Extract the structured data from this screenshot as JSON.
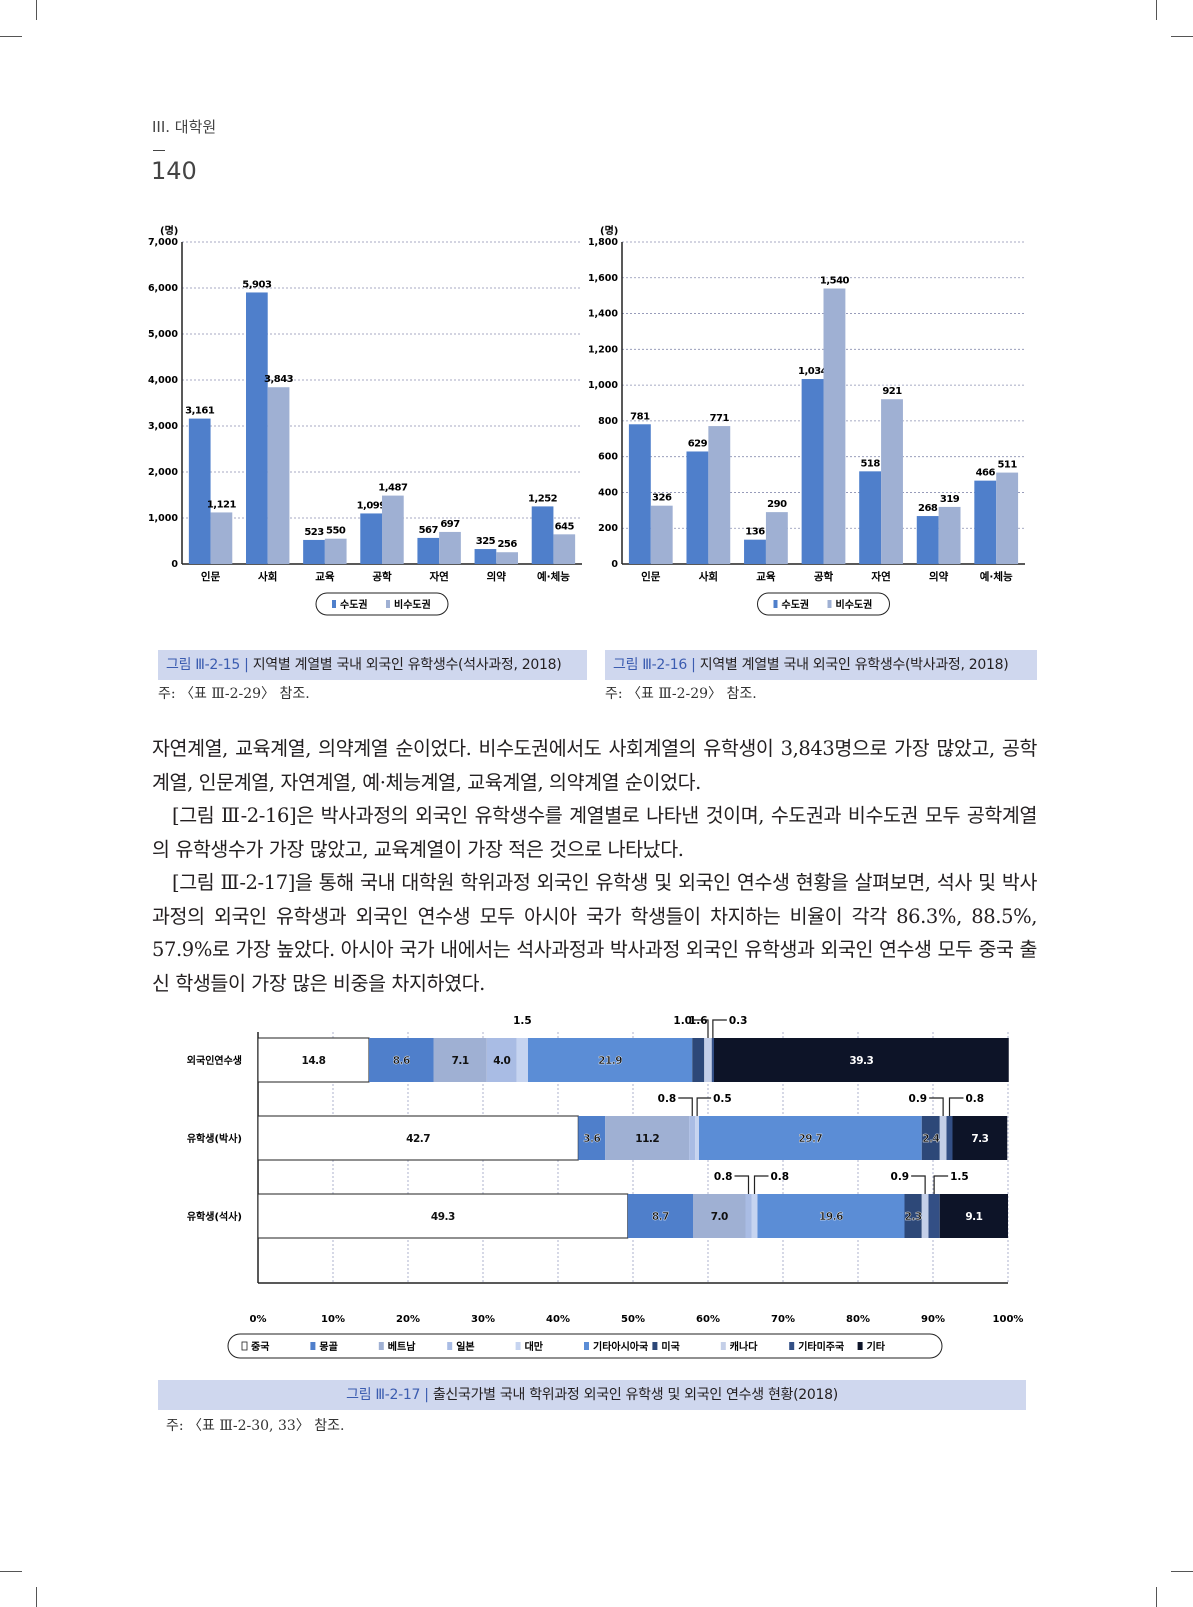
{
  "header": {
    "section": "III. 대학원",
    "page_number": "140"
  },
  "colors": {
    "capital": "#4f7fcb",
    "non_capital": "#9fb0d3",
    "caption_bg": "#cfd7ee",
    "caption_label": "#3b5cb0"
  },
  "figures": {
    "fig15": {
      "label": "그림 Ⅲ-2-15 |",
      "title": "지역별 계열별 국내 외국인 유학생수(석사과정, 2018)",
      "note": "주: 〈표 Ⅲ-2-29〉 참조."
    },
    "fig16": {
      "label": "그림 Ⅲ-2-16 |",
      "title": "지역별 계열별 국내 외국인 유학생수(박사과정, 2018)",
      "note": "주: 〈표 Ⅲ-2-29〉 참조."
    },
    "fig17": {
      "label": "그림 Ⅲ-2-17 |",
      "title": "출신국가별 국내 학위과정 외국인 유학생 및 외국인 연수생 현황(2018)",
      "note": "주: 〈표 Ⅲ-2-30, 33〉 참조."
    }
  },
  "body": {
    "paragraphs": [
      "자연계열, 교육계열, 의약계열 순이었다. 비수도권에서도 사회계열의 유학생이 3,843명으로 가장 많았고, 공학계열, 인문계열, 자연계열, 예·체능계열, 교육계열, 의약계열 순이었다.",
      "[그림 Ⅲ-2-16]은 박사과정의 외국인 유학생수를 계열별로 나타낸 것이며, 수도권과 비수도권 모두 공학계열의 유학생수가 가장 많았고, 교육계열이 가장 적은 것으로 나타났다.",
      "[그림 Ⅲ-2-17]을 통해 국내 대학원 학위과정 외국인 유학생 및 외국인 연수생 현황을 살펴보면, 석사 및 박사과정의 외국인 유학생과 외국인 연수생 모두 아시아 국가 학생들이 차지하는 비율이 각각 86.3%, 88.5%, 57.9%로 가장 높았다. 아시아 국가 내에서는 석사과정과 박사과정 외국인 유학생과 외국인 연수생 모두 중국 출신 학생들이 가장 많은 비중을 차지하였다."
    ]
  },
  "chart_data": [
    {
      "type": "bar",
      "unit": "(명)",
      "categories": [
        "인문",
        "사회",
        "교육",
        "공학",
        "자연",
        "의약",
        "예·체능"
      ],
      "series": [
        {
          "name": "수도권",
          "values": [
            3161,
            5903,
            523,
            1099,
            567,
            325,
            1252
          ],
          "labels": [
            "3,161",
            "5,903",
            "523",
            "1,099",
            "567",
            "325",
            "1,252"
          ]
        },
        {
          "name": "비수도권",
          "values": [
            1121,
            3843,
            550,
            1487,
            697,
            256,
            645
          ],
          "labels": [
            "1,121",
            "3,843",
            "550",
            "1,487",
            "697",
            "256",
            "645"
          ]
        }
      ],
      "ylim": [
        0,
        7000
      ],
      "yticks": [
        0,
        1000,
        2000,
        3000,
        4000,
        5000,
        6000,
        7000
      ],
      "ytick_labels": [
        "0",
        "1,000",
        "2,000",
        "3,000",
        "4,000",
        "5,000",
        "6,000",
        "7,000"
      ],
      "grid": true,
      "legend": "bottom"
    },
    {
      "type": "bar",
      "unit": "(명)",
      "categories": [
        "인문",
        "사회",
        "교육",
        "공학",
        "자연",
        "의약",
        "예·체능"
      ],
      "series": [
        {
          "name": "수도권",
          "values": [
            781,
            629,
            136,
            1034,
            518,
            268,
            466
          ],
          "labels": [
            "781",
            "629",
            "136",
            "1,034",
            "518",
            "268",
            "466"
          ]
        },
        {
          "name": "비수도권",
          "values": [
            326,
            771,
            290,
            1540,
            921,
            319,
            511
          ],
          "labels": [
            "326",
            "771",
            "290",
            "1,540",
            "921",
            "319",
            "511"
          ]
        }
      ],
      "ylim": [
        0,
        1800
      ],
      "yticks": [
        0,
        200,
        400,
        600,
        800,
        1000,
        1200,
        1400,
        1600,
        1800
      ],
      "ytick_labels": [
        "0",
        "200",
        "400",
        "600",
        "800",
        "1,000",
        "1,200",
        "1,400",
        "1,600",
        "1,800"
      ],
      "grid": true,
      "legend": "bottom"
    },
    {
      "type": "bar",
      "orientation": "horizontal-stacked-100",
      "categories": [
        "외국인연수생",
        "유학생(박사)",
        "유학생(석사)"
      ],
      "segments": [
        "중국",
        "몽골",
        "베트남",
        "일본",
        "대만",
        "기타아시아국",
        "미국",
        "캐나다",
        "기타미주국",
        "기타"
      ],
      "segment_colors": [
        "#ffffff",
        "#4f7fcb",
        "#9fb0d3",
        "#a9bce4",
        "#c6d4f0",
        "#5b8dd6",
        "#2d4878",
        "#c4cfe8",
        "#334f85",
        "#0d1428"
      ],
      "values": [
        [
          14.8,
          8.6,
          7.1,
          4.0,
          1.5,
          21.9,
          1.6,
          1.0,
          0.3,
          39.3
        ],
        [
          42.7,
          3.6,
          11.2,
          0.8,
          0.5,
          29.7,
          2.4,
          0.9,
          0.8,
          7.3
        ],
        [
          49.3,
          8.7,
          7.0,
          0.8,
          0.8,
          19.6,
          2.3,
          0.9,
          1.5,
          9.1
        ]
      ],
      "xticks": [
        "0%",
        "10%",
        "20%",
        "30%",
        "40%",
        "50%",
        "60%",
        "70%",
        "80%",
        "90%",
        "100%"
      ],
      "xlim": [
        0,
        100
      ],
      "grid": true,
      "legend": "bottom"
    }
  ]
}
